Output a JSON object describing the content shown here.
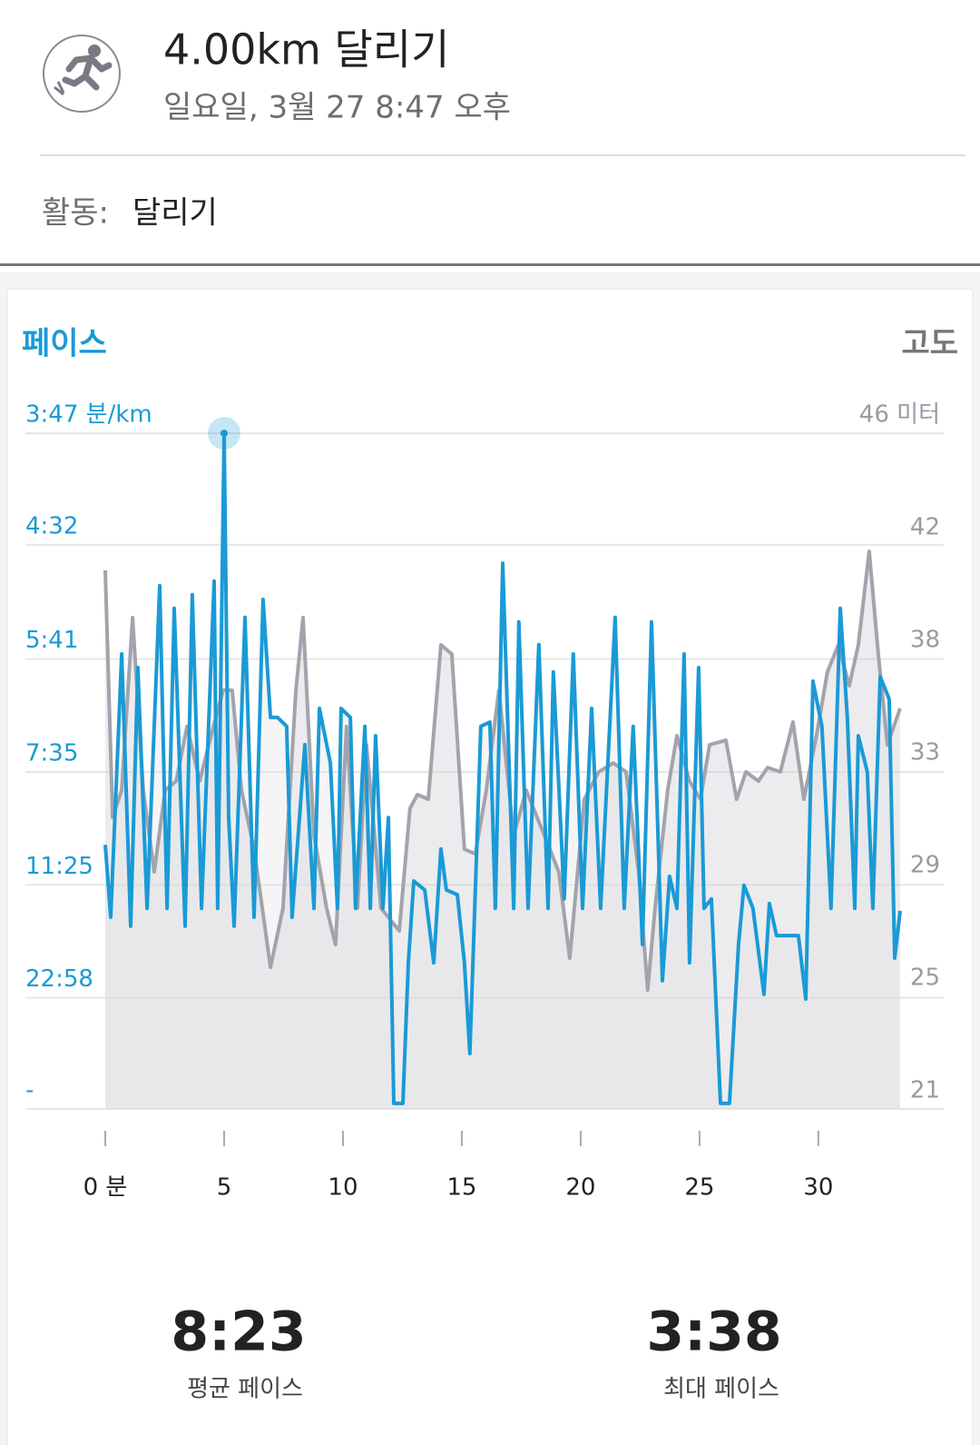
{
  "header": {
    "title": "4.00km 달리기",
    "subtitle": "일요일, 3월 27 8:47 오후"
  },
  "activity": {
    "label": "활동:",
    "value": "달리기"
  },
  "chart_data": {
    "type": "line",
    "xlim": [
      0,
      33.44
    ],
    "xticks": [
      {
        "value": 0,
        "label": "0 분"
      },
      5,
      10,
      15,
      20,
      25,
      30
    ],
    "ylim": [
      0,
      15.86
    ],
    "yticks": [
      {
        "value": 15.86,
        "label": "3:47 분/km"
      },
      {
        "value": 13.24,
        "label": "4:32"
      },
      {
        "value": 10.56,
        "label": "5:41"
      },
      {
        "value": 7.91,
        "label": "7:35"
      },
      {
        "value": 5.26,
        "label": "11:25"
      },
      {
        "value": 2.61,
        "label": "22:58"
      },
      {
        "value": 0,
        "label": "-"
      }
    ],
    "y2lim": [
      21,
      46
    ],
    "y2ticks": [
      {
        "value": 46,
        "label": "46 미터"
      },
      {
        "value": 41.83,
        "label": "42"
      },
      {
        "value": 37.67,
        "label": "38"
      },
      {
        "value": 33.5,
        "label": "33"
      },
      {
        "value": 29.33,
        "label": "29"
      },
      {
        "value": 25.17,
        "label": "25"
      },
      21
    ],
    "grid": true,
    "series": [
      {
        "name": "페이스",
        "color": "#1a9ad6",
        "x": [
          0,
          0.23,
          0.69,
          1.07,
          1.37,
          1.76,
          2.29,
          2.6,
          2.9,
          3.36,
          3.66,
          4.05,
          4.58,
          4.73,
          5,
          5.19,
          5.42,
          5.88,
          6.26,
          6.64,
          6.95,
          7.25,
          7.63,
          7.86,
          8.4,
          8.78,
          9.01,
          9.47,
          9.77,
          9.92,
          10.31,
          10.53,
          10.92,
          11.15,
          11.37,
          11.68,
          11.91,
          12.14,
          12.52,
          12.75,
          12.98,
          13.44,
          13.82,
          14.12,
          14.35,
          14.81,
          15.11,
          15.34,
          15.8,
          16.18,
          16.41,
          16.72,
          17.18,
          17.4,
          17.79,
          18.24,
          18.63,
          18.85,
          19.31,
          19.69,
          20.08,
          20.46,
          20.84,
          21.45,
          21.83,
          22.21,
          22.6,
          22.98,
          23.44,
          23.74,
          24.05,
          24.35,
          24.58,
          24.96,
          25.19,
          25.5,
          25.88,
          26.26,
          26.64,
          26.87,
          27.25,
          27.71,
          27.94,
          28.24,
          29.16,
          29.47,
          29.77,
          30.15,
          30.53,
          30.92,
          31.22,
          31.53,
          31.68,
          32.06,
          32.29,
          32.6,
          32.98,
          33.21,
          33.44
        ],
        "values": [
          6.2,
          4.5,
          10.68,
          4.29,
          10.36,
          4.71,
          12.28,
          4.71,
          11.75,
          4.29,
          12.07,
          4.71,
          12.39,
          4.71,
          15.86,
          6.84,
          4.29,
          11.54,
          4.5,
          11.96,
          9.19,
          9.19,
          8.98,
          4.5,
          8.55,
          4.71,
          9.4,
          8.12,
          4.71,
          9.4,
          9.19,
          4.71,
          8.98,
          4.71,
          8.76,
          4.71,
          6.84,
          0.13,
          0.13,
          3.43,
          5.35,
          5.14,
          3.43,
          6.1,
          5.14,
          5.03,
          3.43,
          1.3,
          8.98,
          9.08,
          4.71,
          12.81,
          4.71,
          11.43,
          4.71,
          10.9,
          4.71,
          10.26,
          4.93,
          10.68,
          4.71,
          9.4,
          4.71,
          11.54,
          4.71,
          8.98,
          3.86,
          11.43,
          3.01,
          5.46,
          4.71,
          10.68,
          3.43,
          10.36,
          4.71,
          4.93,
          0.13,
          0.13,
          3.86,
          5.25,
          4.71,
          2.69,
          4.82,
          4.07,
          4.07,
          2.58,
          10.04,
          8.98,
          4.71,
          11.75,
          9.19,
          4.71,
          8.76,
          7.91,
          4.71,
          10.15,
          9.62,
          3.54,
          4.65
        ]
      },
      {
        "name": "고도",
        "color": "#a3a3ad",
        "axis": "y2",
        "x": [
          0,
          0.31,
          0.69,
          1.15,
          1.6,
          2.06,
          2.52,
          2.98,
          3.44,
          3.97,
          4.5,
          4.96,
          5.34,
          5.73,
          6.26,
          6.95,
          7.48,
          8.02,
          8.32,
          8.78,
          9.31,
          9.69,
          10.15,
          10.61,
          10.99,
          11.6,
          12.37,
          12.82,
          13.13,
          13.59,
          14.12,
          14.58,
          15.11,
          15.57,
          16.03,
          16.56,
          17.18,
          17.71,
          18.63,
          19.08,
          19.54,
          20.15,
          20.76,
          21.37,
          21.91,
          22.44,
          22.82,
          23.13,
          23.66,
          24.05,
          24.58,
          25.04,
          25.42,
          26.11,
          26.56,
          26.95,
          27.48,
          27.86,
          28.4,
          28.93,
          29.39,
          29.92,
          30.38,
          30.84,
          31.3,
          31.68,
          32.14,
          32.52,
          32.9,
          33.44
        ],
        "values": [
          40.93,
          31.79,
          32.79,
          39.18,
          32.79,
          29.77,
          32.79,
          33.13,
          35.15,
          33.13,
          34.98,
          36.49,
          36.49,
          32.79,
          30.61,
          26.24,
          28.43,
          36.49,
          39.18,
          31.11,
          28.43,
          27.08,
          35.15,
          28.43,
          34.47,
          28.43,
          27.59,
          32.12,
          32.63,
          32.46,
          38.17,
          37.83,
          30.61,
          30.44,
          32.79,
          36.49,
          31.11,
          32.79,
          30.78,
          29.77,
          26.58,
          32.46,
          33.47,
          33.8,
          33.47,
          29.77,
          25.4,
          28.43,
          32.79,
          34.81,
          33.13,
          32.46,
          34.47,
          34.64,
          32.46,
          33.47,
          33.13,
          33.63,
          33.47,
          35.31,
          32.46,
          34.81,
          37.16,
          38.17,
          36.66,
          38.17,
          41.63,
          37.83,
          34.47,
          35.82
        ]
      }
    ]
  },
  "stats": [
    {
      "value": "8:23",
      "label": "평균 페이스"
    },
    {
      "value": "3:38",
      "label": "최대 페이스"
    }
  ]
}
